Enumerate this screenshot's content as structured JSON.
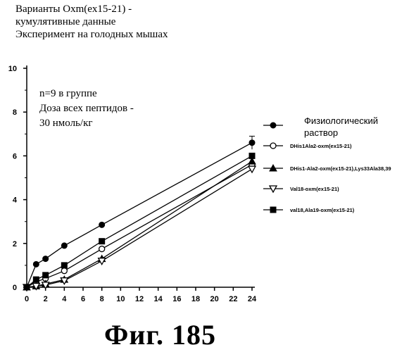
{
  "title_lines": [
    "Варианты Oxm(ex15-21) -",
    "кумулятивные данные",
    "Эксперимент на голодных мышах"
  ],
  "annotation_lines": [
    "n=9 в группе",
    "Доза всех пептидов -",
    "30 нмоль/кг"
  ],
  "figure_label": "Фиг.  185",
  "chart_data": {
    "type": "line",
    "title": "",
    "xlabel": "",
    "ylabel": "",
    "xlim": [
      0,
      24
    ],
    "ylim": [
      0,
      10
    ],
    "xticks": [
      0,
      2,
      4,
      6,
      8,
      10,
      12,
      14,
      16,
      18,
      20,
      22,
      24
    ],
    "yticks": [
      0,
      2,
      4,
      6,
      8,
      10
    ],
    "grid": false,
    "legend_position": "right",
    "series": [
      {
        "name": "Физиологический раствор",
        "marker": "circle-filled",
        "x": [
          0,
          1,
          2,
          4,
          8,
          24
        ],
        "y": [
          0,
          1.05,
          1.3,
          1.9,
          2.85,
          6.6
        ],
        "err": [
          0,
          0,
          0,
          0,
          0,
          0.3
        ]
      },
      {
        "name": "DHis1Ala2-oxm(ex15-21)",
        "marker": "circle-open",
        "x": [
          0,
          1,
          2,
          4,
          8,
          24
        ],
        "y": [
          0,
          0.25,
          0.4,
          0.75,
          1.75,
          5.6
        ],
        "err": [
          0,
          0,
          0,
          0,
          0,
          0
        ]
      },
      {
        "name": "DHis1-Ala2-oxm(ex15-21),Lys33Ala38,39",
        "marker": "triangle-up-filled",
        "x": [
          0,
          1,
          2,
          4,
          8,
          24
        ],
        "y": [
          0,
          0.05,
          0.15,
          0.35,
          1.3,
          5.75
        ],
        "err": [
          0,
          0,
          0,
          0,
          0,
          0
        ]
      },
      {
        "name": "Val18-oxm(ex15-21)",
        "marker": "triangle-down-open",
        "x": [
          0,
          1,
          2,
          4,
          8,
          24
        ],
        "y": [
          0,
          0.05,
          0.1,
          0.3,
          1.2,
          5.4
        ],
        "err": [
          0,
          0,
          0,
          0,
          0,
          0
        ]
      },
      {
        "name": "val18,Ala19-oxm(ex15-21)",
        "marker": "square-filled",
        "x": [
          0,
          1,
          2,
          4,
          8,
          24
        ],
        "y": [
          0,
          0.35,
          0.55,
          1.0,
          2.1,
          6.0
        ],
        "err": [
          0,
          0,
          0,
          0,
          0,
          0
        ]
      }
    ]
  }
}
